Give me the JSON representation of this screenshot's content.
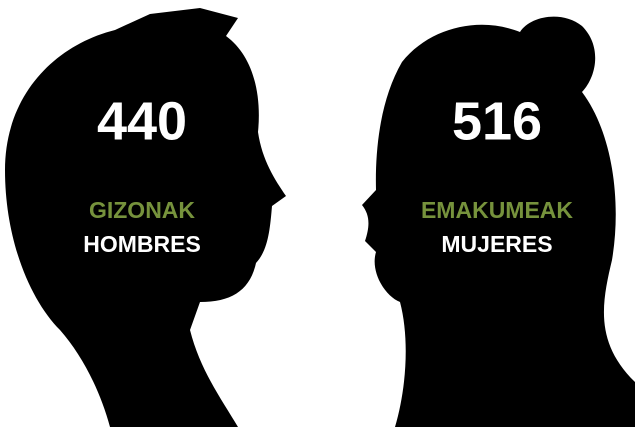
{
  "figures": [
    {
      "value": 440,
      "label_eu": "GIZONAK",
      "label_es": "HOMBRES"
    },
    {
      "value": 516,
      "label_eu": "EMAKUMEAK",
      "label_es": "MUJERES"
    }
  ]
}
